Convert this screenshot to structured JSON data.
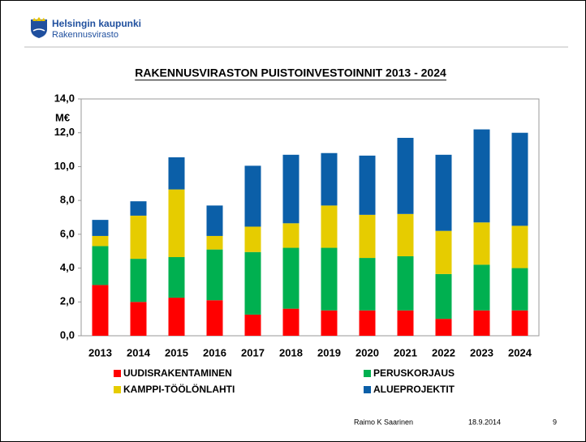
{
  "header": {
    "organization": "Helsingin kaupunki",
    "department": "Rakennusvirasto"
  },
  "footer": {
    "author": "Raimo K Saarinen",
    "date": "18.9.2014",
    "page": "9"
  },
  "chart_data": {
    "type": "stacked_bar",
    "title": "RAKENNUSVIRASTON PUISTOINVESTOINNIT 2013 - 2024",
    "y_label": "M€",
    "categories": [
      "2013",
      "2014",
      "2015",
      "2016",
      "2017",
      "2018",
      "2019",
      "2020",
      "2021",
      "2022",
      "2023",
      "2024"
    ],
    "series": [
      {
        "name": "UUDISRAKENTAMINEN",
        "color": "#ff0000",
        "values": [
          3.0,
          2.0,
          2.25,
          2.1,
          1.25,
          1.6,
          1.5,
          1.5,
          1.5,
          1.0,
          1.5,
          1.5
        ]
      },
      {
        "name": "PERUSKORJAUS",
        "color": "#00b050",
        "values": [
          2.3,
          2.55,
          2.4,
          3.0,
          3.7,
          3.6,
          3.7,
          3.1,
          3.2,
          2.65,
          2.7,
          2.5
        ]
      },
      {
        "name": "KAMPPI-TÖÖLÖNLAHTI",
        "color": "#e6cc00",
        "values": [
          0.6,
          2.55,
          4.0,
          0.8,
          1.5,
          1.45,
          2.5,
          2.55,
          2.5,
          2.55,
          2.5,
          2.5
        ]
      },
      {
        "name": "ALUEPROJEKTIT",
        "color": "#0b5fa8",
        "values": [
          0.95,
          0.85,
          1.9,
          1.8,
          3.6,
          4.05,
          3.1,
          3.5,
          4.5,
          4.5,
          5.5,
          5.5
        ]
      }
    ],
    "ylim": [
      0,
      14
    ],
    "yticks": [
      {
        "value": 0,
        "label": "0,0"
      },
      {
        "value": 2,
        "label": "2,0"
      },
      {
        "value": 4,
        "label": "4,0"
      },
      {
        "value": 6,
        "label": "6,0"
      },
      {
        "value": 8,
        "label": "8,0"
      },
      {
        "value": 10,
        "label": "10,0"
      },
      {
        "value": 12,
        "label": "12,0"
      },
      {
        "value": 14,
        "label": "14,0"
      }
    ],
    "grid": false
  }
}
